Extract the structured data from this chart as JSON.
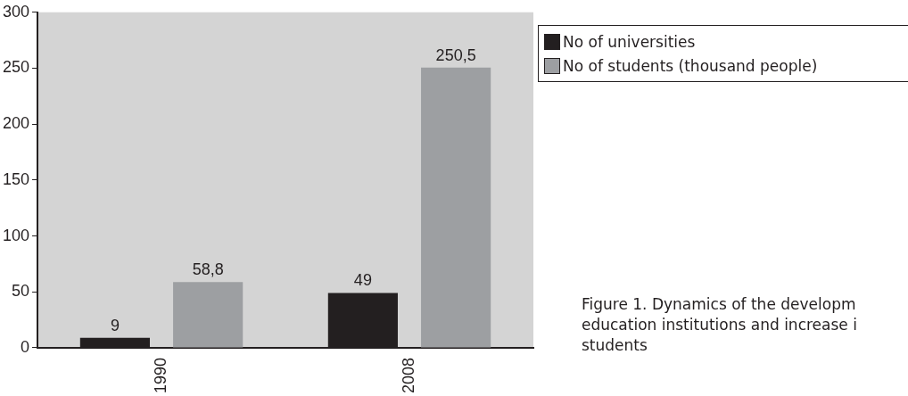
{
  "chart_data": {
    "type": "bar",
    "categories": [
      "1990",
      "2008"
    ],
    "series": [
      {
        "name": "No of universities",
        "color": "#231f20",
        "values": [
          9,
          49
        ]
      },
      {
        "name": "No of students (thousand people)",
        "color": "#9d9fa2",
        "values": [
          58.8,
          250.5
        ]
      }
    ],
    "value_labels": [
      [
        "9",
        "49"
      ],
      [
        "58,8",
        "250,5"
      ]
    ],
    "ylim": [
      0,
      300
    ],
    "yticks": [
      0,
      50,
      100,
      150,
      200,
      250,
      300
    ],
    "grid": false,
    "legend": "top right",
    "annotations": [
      "Figure 1. Dynamics of the developm",
      "education institutions and increase i",
      "students"
    ]
  }
}
